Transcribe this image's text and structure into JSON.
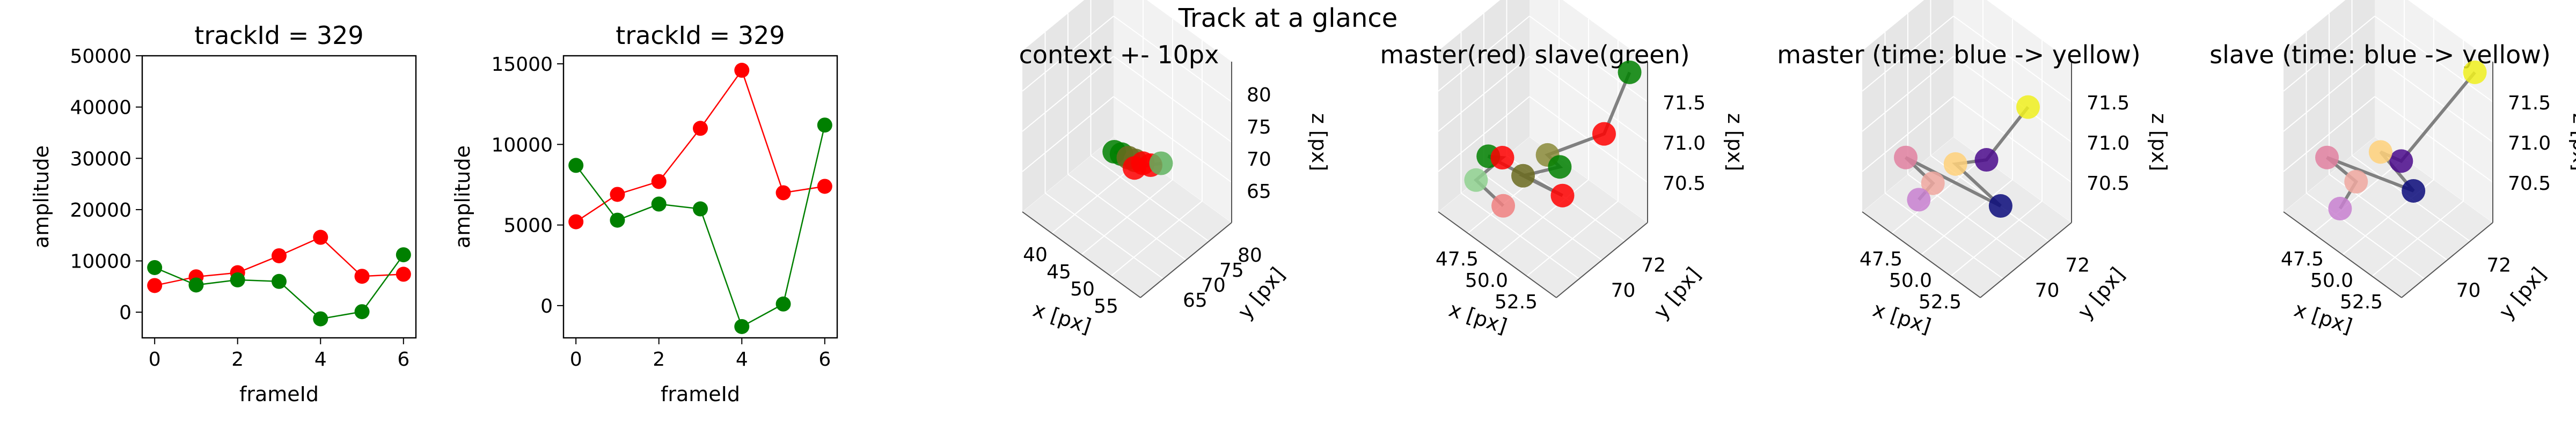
{
  "figure": {
    "suptitle": "Track at a glance"
  },
  "chart_data": [
    {
      "type": "line",
      "title": "trackId = 329",
      "xlabel": "frameId",
      "ylabel": "amplitude",
      "x": [
        0,
        1,
        2,
        3,
        4,
        5,
        6
      ],
      "xticks": [
        "0",
        "2",
        "4",
        "6"
      ],
      "yticks": [
        "0",
        "10000",
        "20000",
        "30000",
        "40000",
        "50000"
      ],
      "xlim": [
        -0.3,
        6.3
      ],
      "ylim": [
        -5000,
        50000
      ],
      "grid": false,
      "series": [
        {
          "color": "#ff0000",
          "values": [
            5200,
            6900,
            7700,
            11000,
            14600,
            7000,
            7400
          ]
        },
        {
          "color": "#008000",
          "values": [
            8700,
            5300,
            6300,
            6000,
            -1300,
            100,
            11200
          ]
        }
      ]
    },
    {
      "type": "line",
      "title": "trackId = 329",
      "xlabel": "frameId",
      "ylabel": "amplitude",
      "x": [
        0,
        1,
        2,
        3,
        4,
        5,
        6
      ],
      "xticks": [
        "0",
        "2",
        "4",
        "6"
      ],
      "yticks": [
        "0",
        "5000",
        "10000",
        "15000"
      ],
      "xlim": [
        -0.3,
        6.3
      ],
      "ylim": [
        -2000,
        15500
      ],
      "grid": false,
      "series": [
        {
          "color": "#ff0000",
          "values": [
            5200,
            6900,
            7700,
            11000,
            14600,
            7000,
            7400
          ]
        },
        {
          "color": "#008000",
          "values": [
            8700,
            5300,
            6300,
            6000,
            -1300,
            100,
            11200
          ]
        }
      ]
    },
    {
      "type": "scatter3d",
      "title": "context +- 10px",
      "xlabel": "x [px]",
      "ylabel": "y [px]",
      "zlabel": "z [px]",
      "xticks": [
        "40",
        "45",
        "50",
        "55"
      ],
      "yticks": [
        "65",
        "70",
        "75",
        "80"
      ],
      "zticks": [
        "65",
        "70",
        "75",
        "80"
      ],
      "points": [
        {
          "x": 47.0,
          "y": 70.5,
          "z": 70.3,
          "color": "#008000"
        },
        {
          "x": 48.0,
          "y": 70.8,
          "z": 70.4,
          "color": "#008000"
        },
        {
          "x": 49.0,
          "y": 71.0,
          "z": 70.4,
          "color": "#6b6b20"
        },
        {
          "x": 50.0,
          "y": 71.2,
          "z": 70.5,
          "color": "#6b6b20"
        },
        {
          "x": 51.0,
          "y": 71.6,
          "z": 70.5,
          "color": "#ff0000"
        },
        {
          "x": 52.0,
          "y": 72.0,
          "z": 70.6,
          "color": "#ff0000"
        },
        {
          "x": 50.5,
          "y": 70.4,
          "z": 70.2,
          "color": "#ff0000"
        },
        {
          "x": 53.0,
          "y": 73.0,
          "z": 70.9,
          "color": "#5fb35f"
        }
      ]
    },
    {
      "type": "scatter3d",
      "title": "master(red) slave(green)",
      "xlabel": "x [px]",
      "ylabel": "y [px]",
      "zlabel": "z [px]",
      "xticks": [
        "47.5",
        "50.0",
        "52.5"
      ],
      "yticks": [
        "70",
        "72"
      ],
      "zticks": [
        "70.5",
        "71.0",
        "71.5"
      ],
      "points": [
        {
          "x": 53.0,
          "y": 73.5,
          "z": 71.8,
          "color": "#008000"
        },
        {
          "x": 52.5,
          "y": 72.6,
          "z": 71.2,
          "color": "#ff0000"
        },
        {
          "x": 50.5,
          "y": 71.4,
          "z": 70.9,
          "color": "#8b8b3a"
        },
        {
          "x": 51.0,
          "y": 71.6,
          "z": 70.8,
          "color": "#008000"
        },
        {
          "x": 49.5,
          "y": 71.0,
          "z": 70.6,
          "color": "#6b6b20"
        },
        {
          "x": 51.5,
          "y": 71.3,
          "z": 70.6,
          "color": "#ff0000"
        },
        {
          "x": 48.0,
          "y": 70.5,
          "z": 70.7,
          "color": "#008000"
        },
        {
          "x": 48.5,
          "y": 70.8,
          "z": 70.7,
          "color": "#ff0000"
        },
        {
          "x": 47.5,
          "y": 70.3,
          "z": 70.4,
          "color": "#8fd18f"
        },
        {
          "x": 49.0,
          "y": 70.4,
          "z": 70.3,
          "color": "#f08080"
        }
      ]
    },
    {
      "type": "scatter3d",
      "title": "master (time: blue -> yellow)",
      "xlabel": "x [px]",
      "ylabel": "y [px]",
      "zlabel": "z [px]",
      "xticks": [
        "47.5",
        "50.0",
        "52.5"
      ],
      "yticks": [
        "70",
        "72"
      ],
      "zticks": [
        "70.5",
        "71.0",
        "71.5"
      ],
      "points": [
        {
          "x": 52.5,
          "y": 72.6,
          "z": 71.5,
          "color": "#f0f01e"
        },
        {
          "x": 51.5,
          "y": 71.3,
          "z": 71.0,
          "color": "#4b0a8c"
        },
        {
          "x": 50.0,
          "y": 71.0,
          "z": 70.8,
          "color": "#ffd17a"
        },
        {
          "x": 52.0,
          "y": 71.6,
          "z": 70.5,
          "color": "#0a0a7a"
        },
        {
          "x": 47.5,
          "y": 70.6,
          "z": 70.6,
          "color": "#e080a0"
        },
        {
          "x": 49.0,
          "y": 70.7,
          "z": 70.5,
          "color": "#f0a8a0"
        },
        {
          "x": 48.5,
          "y": 70.4,
          "z": 70.3,
          "color": "#c880d0"
        }
      ]
    },
    {
      "type": "scatter3d",
      "title": "slave (time: blue -> yellow)",
      "xlabel": "x [px]",
      "ylabel": "y [px]",
      "zlabel": "z [px]",
      "xticks": [
        "47.5",
        "50.0",
        "52.5"
      ],
      "yticks": [
        "70",
        "72"
      ],
      "zticks": [
        "70.5",
        "71.0",
        "71.5"
      ],
      "points": [
        {
          "x": 53.0,
          "y": 73.5,
          "z": 71.8,
          "color": "#f0f01e"
        },
        {
          "x": 51.0,
          "y": 71.4,
          "z": 70.9,
          "color": "#4b0a8c"
        },
        {
          "x": 50.0,
          "y": 71.2,
          "z": 70.9,
          "color": "#ffd17a"
        },
        {
          "x": 51.5,
          "y": 71.6,
          "z": 70.6,
          "color": "#0a0a7a"
        },
        {
          "x": 47.5,
          "y": 70.6,
          "z": 70.6,
          "color": "#e080a0"
        },
        {
          "x": 49.0,
          "y": 70.8,
          "z": 70.5,
          "color": "#f0a8a0"
        },
        {
          "x": 48.5,
          "y": 70.4,
          "z": 70.2,
          "color": "#c880d0"
        }
      ]
    }
  ]
}
